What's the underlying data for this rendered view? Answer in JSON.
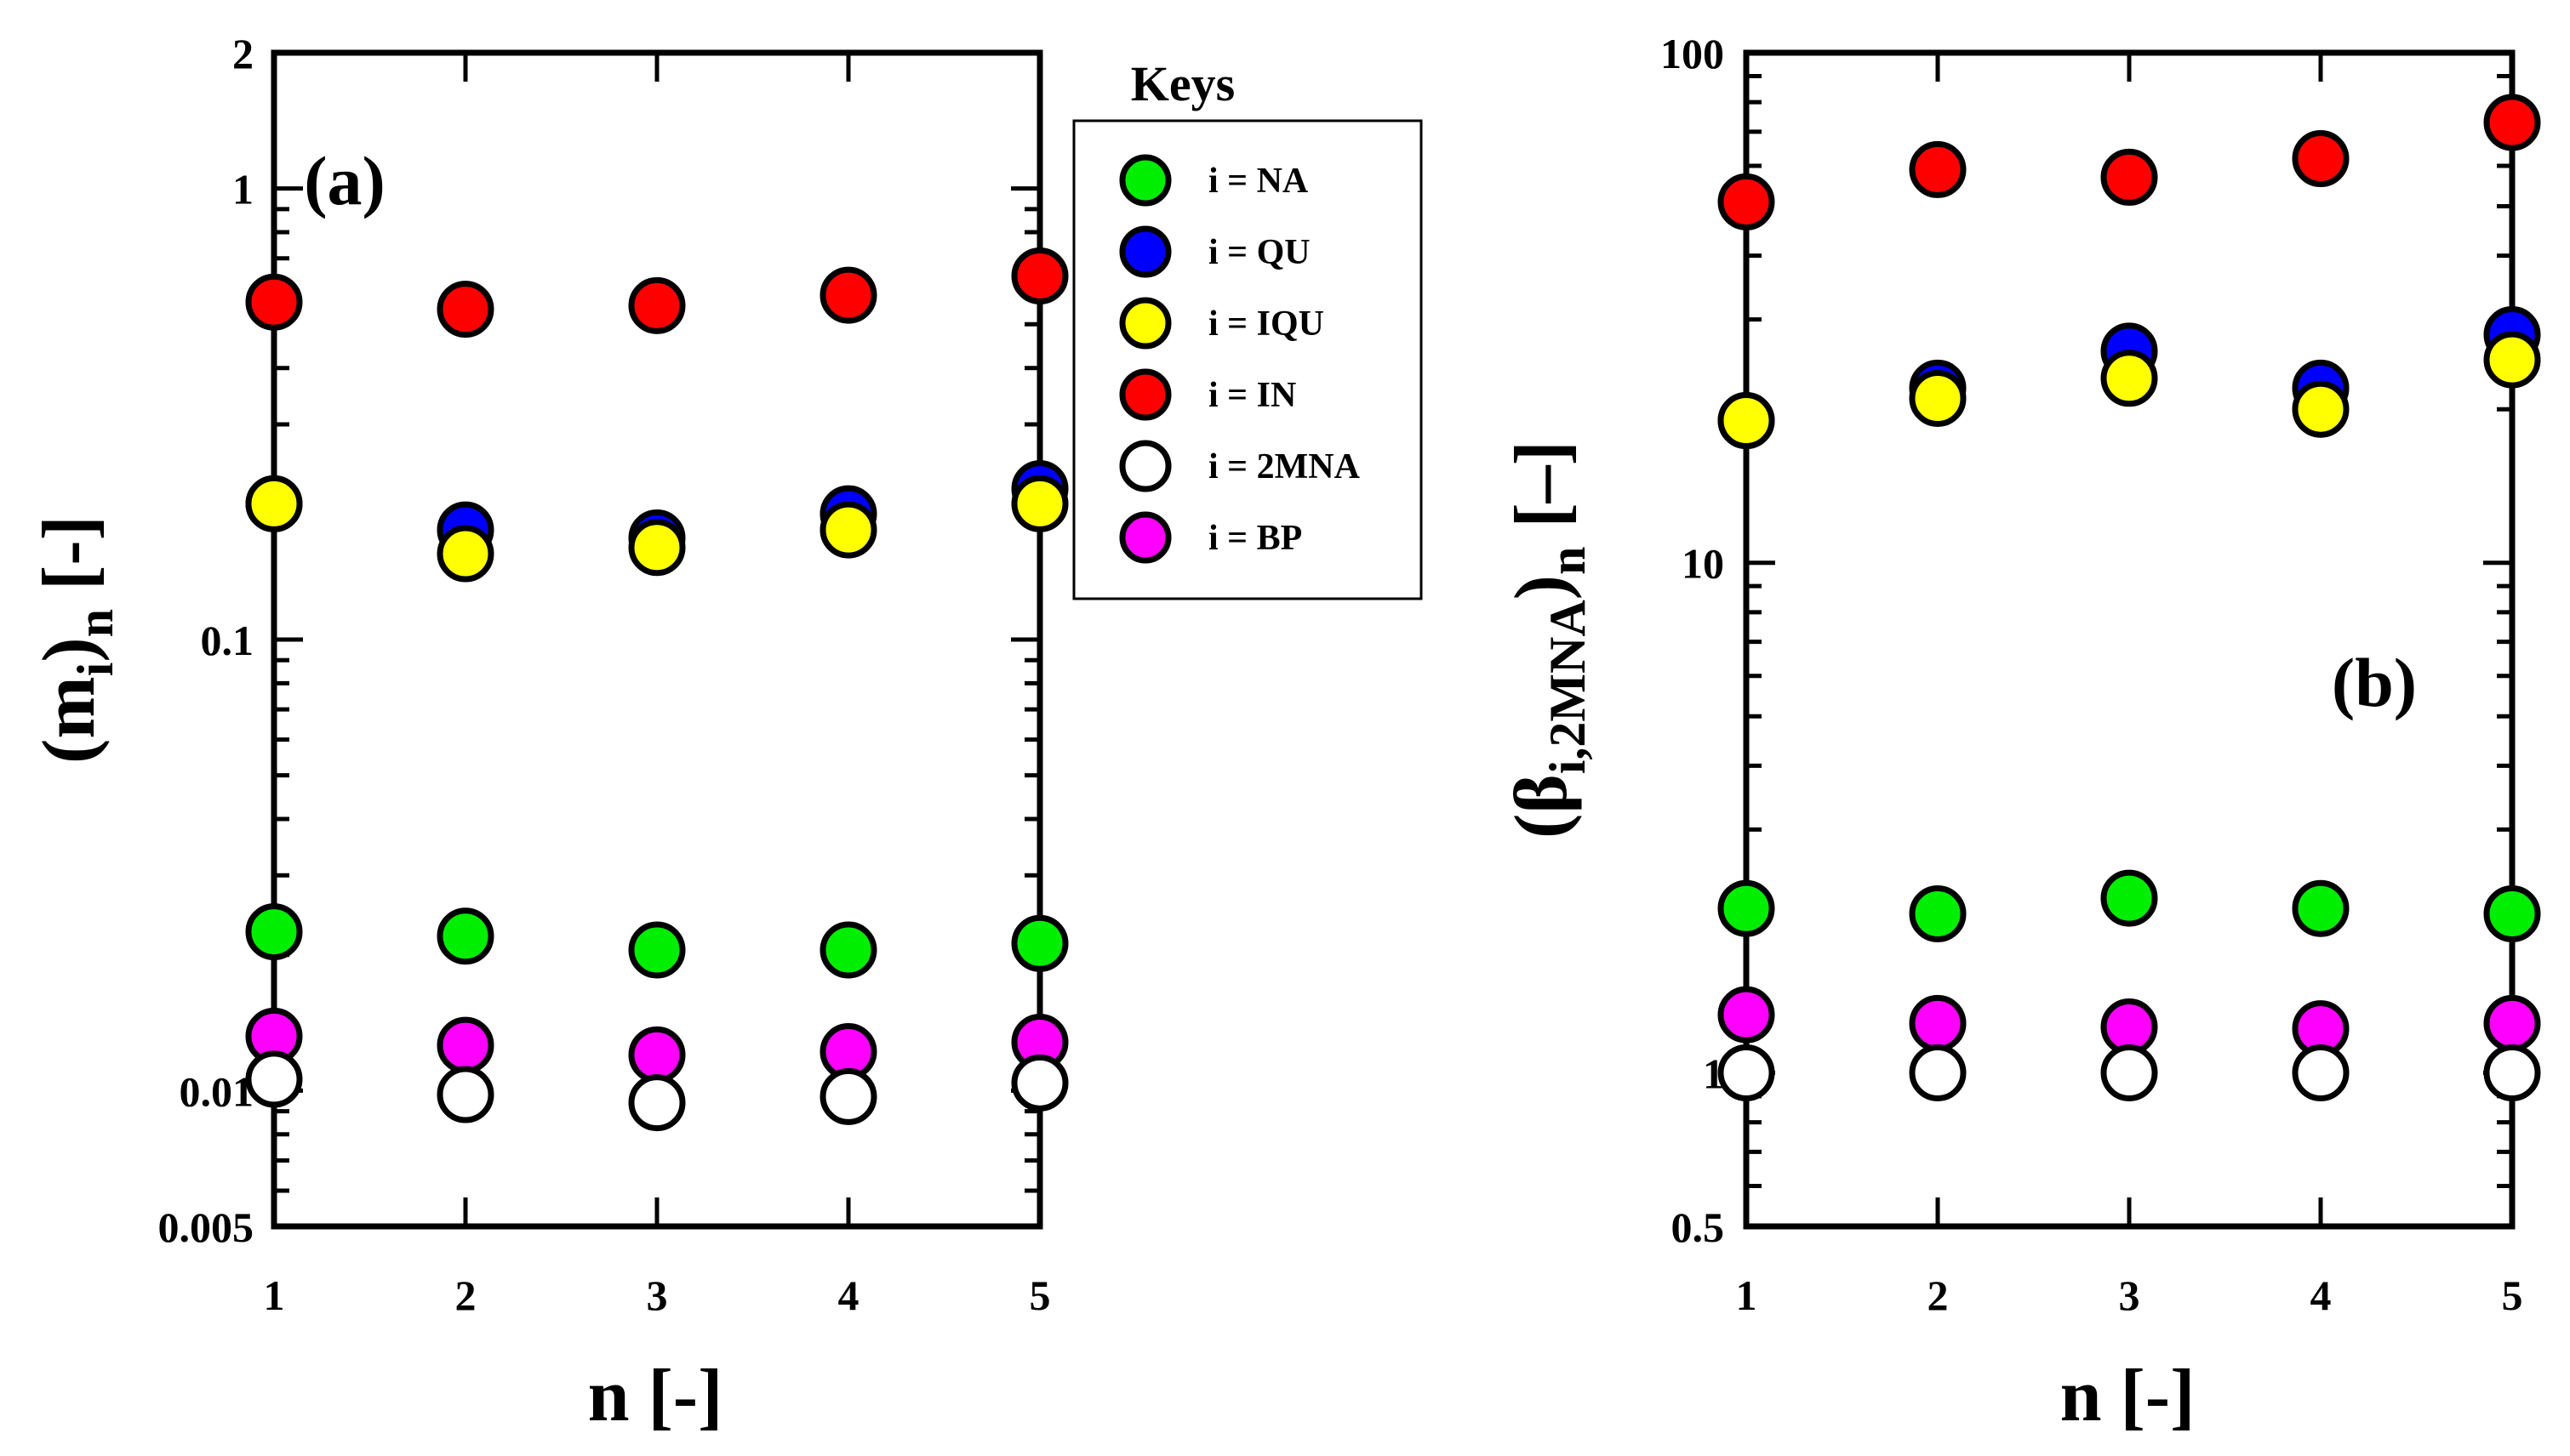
{
  "chart_data": [
    {
      "type": "scatter",
      "panel": "(a)",
      "title": "",
      "xlabel": "n  [-]",
      "ylabel": {
        "main": "(m",
        "sub_i": "i",
        "close": ")",
        "sub_n": "n",
        "unit": " [-]"
      },
      "yscale": "log",
      "xlim": [
        1,
        5
      ],
      "ylim": [
        0.005,
        2
      ],
      "xticks": [
        1,
        2,
        3,
        4,
        5
      ],
      "xtick_labels": [
        "1",
        "2",
        "3",
        "4",
        "5"
      ],
      "yticks": [
        0.005,
        0.01,
        0.1,
        1,
        2
      ],
      "ytick_labels": [
        "0.005",
        "0.01",
        "0.1",
        "1",
        "2"
      ],
      "series": [
        {
          "key": "IN",
          "color": "#ff0000",
          "x": [
            1,
            2,
            3,
            4,
            5
          ],
          "values": [
            0.56,
            0.54,
            0.55,
            0.58,
            0.64
          ]
        },
        {
          "key": "QU",
          "color": "#0000ff",
          "x": [
            1,
            2,
            3,
            4,
            5
          ],
          "values": [
            0.2,
            0.175,
            0.168,
            0.19,
            0.216
          ]
        },
        {
          "key": "IQU",
          "color": "#ffff00",
          "x": [
            1,
            2,
            3,
            4,
            5
          ],
          "values": [
            0.2,
            0.155,
            0.16,
            0.175,
            0.2
          ]
        },
        {
          "key": "NA",
          "color": "#00ee00",
          "x": [
            1,
            2,
            3,
            4,
            5
          ],
          "values": [
            0.0225,
            0.022,
            0.0205,
            0.0205,
            0.0212
          ]
        },
        {
          "key": "BP",
          "color": "#ff00ff",
          "x": [
            1,
            2,
            3,
            4,
            5
          ],
          "values": [
            0.0132,
            0.0126,
            0.012,
            0.0122,
            0.0128
          ]
        },
        {
          "key": "2MNA",
          "color": "#ffffff",
          "x": [
            1,
            2,
            3,
            4,
            5
          ],
          "values": [
            0.0106,
            0.0098,
            0.0094,
            0.0097,
            0.0104
          ]
        }
      ],
      "annotations": [
        "(a)"
      ]
    },
    {
      "type": "scatter",
      "panel": "(b)",
      "title": "",
      "xlabel": "n  [-]",
      "ylabel": {
        "main": "(β",
        "sub_i": "i,2MNA",
        "close": ")",
        "sub_n": "n",
        "unit": " [–]"
      },
      "yscale": "log",
      "xlim": [
        1,
        5
      ],
      "ylim": [
        0.5,
        100
      ],
      "xticks": [
        1,
        2,
        3,
        4,
        5
      ],
      "xtick_labels": [
        "1",
        "2",
        "3",
        "4",
        "5"
      ],
      "yticks": [
        0.5,
        1,
        10,
        100
      ],
      "ytick_labels": [
        "0.5",
        "1",
        "10",
        "100"
      ],
      "series": [
        {
          "key": "IN",
          "color": "#ff0000",
          "x": [
            1,
            2,
            3,
            4,
            5
          ],
          "values": [
            51,
            59,
            57,
            62,
            73
          ]
        },
        {
          "key": "QU",
          "color": "#0000ff",
          "x": [
            1,
            2,
            3,
            4,
            5
          ],
          "values": [
            19,
            22,
            26,
            22,
            28
          ]
        },
        {
          "key": "IQU",
          "color": "#ffff00",
          "x": [
            1,
            2,
            3,
            4,
            5
          ],
          "values": [
            19,
            21,
            23,
            20,
            25
          ]
        },
        {
          "key": "NA",
          "color": "#00ee00",
          "x": [
            1,
            2,
            3,
            4,
            5
          ],
          "values": [
            2.1,
            2.05,
            2.2,
            2.1,
            2.05
          ]
        },
        {
          "key": "BP",
          "color": "#ff00ff",
          "x": [
            1,
            2,
            3,
            4,
            5
          ],
          "values": [
            1.3,
            1.25,
            1.23,
            1.22,
            1.25
          ]
        },
        {
          "key": "2MNA",
          "color": "#ffffff",
          "x": [
            1,
            2,
            3,
            4,
            5
          ],
          "values": [
            1.0,
            1.0,
            1.0,
            1.0,
            1.0
          ]
        }
      ],
      "annotations": [
        "(b)"
      ]
    }
  ],
  "legend": {
    "title": "Keys",
    "entries": [
      {
        "label": "i = NA",
        "color": "#00ee00"
      },
      {
        "label": "i = QU",
        "color": "#0000ff"
      },
      {
        "label": "i = IQU",
        "color": "#ffff00"
      },
      {
        "label": "i = IN",
        "color": "#ff0000"
      },
      {
        "label": "i = 2MNA",
        "color": "#ffffff"
      },
      {
        "label": "i = BP",
        "color": "#ff00ff"
      }
    ]
  }
}
